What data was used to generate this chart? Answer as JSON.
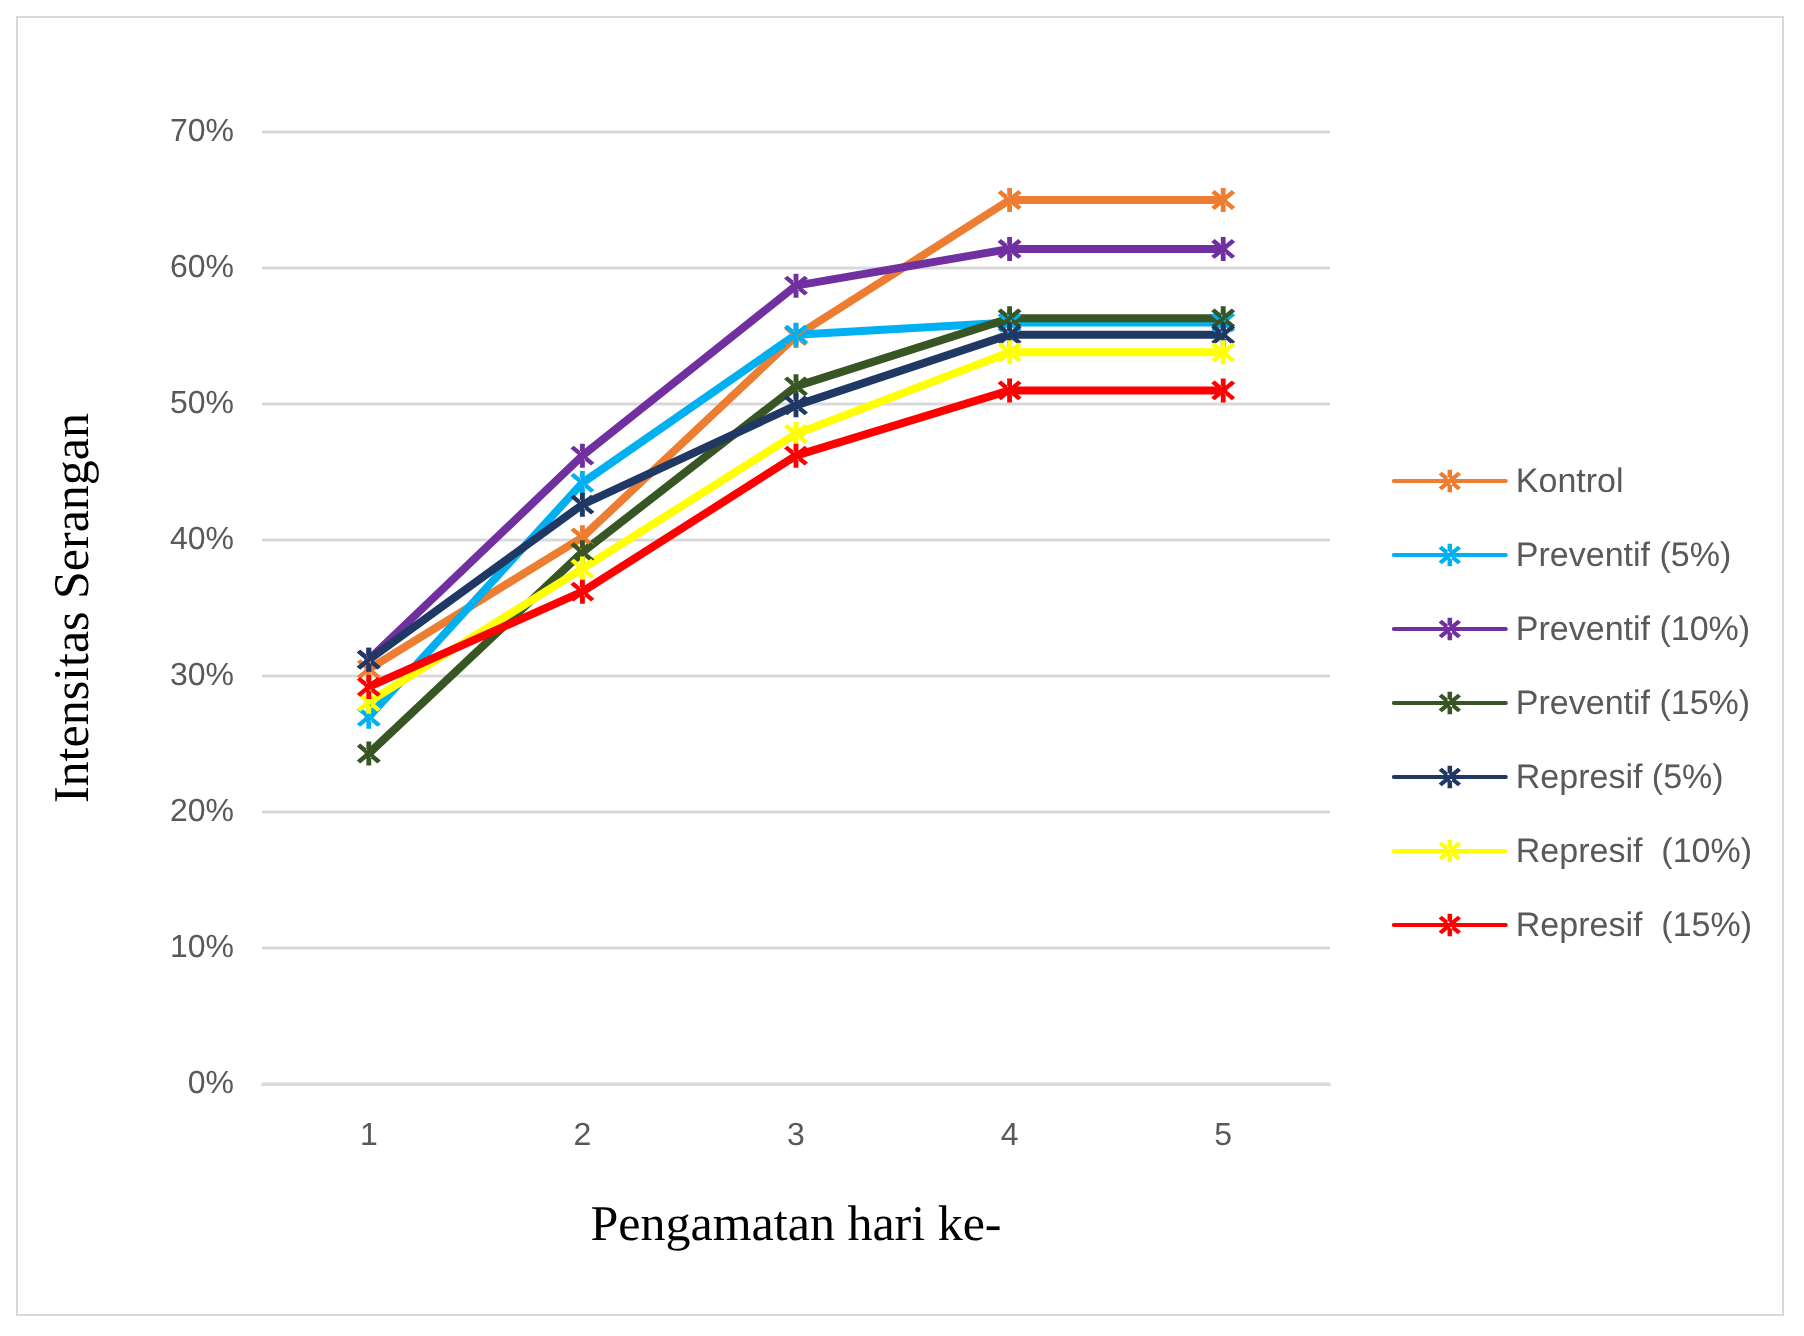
{
  "chart_data": {
    "type": "line",
    "xlabel": "Pengamatan hari ke-",
    "ylabel": "Intensitas Serangan",
    "categories": [
      "1",
      "2",
      "3",
      "4",
      "5"
    ],
    "series": [
      {
        "name": "Kontrol",
        "color": "#ed7d31",
        "values": [
          30.5,
          40.2,
          55,
          65,
          65
        ]
      },
      {
        "name": "Preventif (5%)",
        "color": "#00b0f0",
        "values": [
          27,
          44.2,
          55.1,
          56,
          56
        ]
      },
      {
        "name": "Preventif (10%)",
        "color": "#7030a0",
        "values": [
          31.2,
          46.2,
          58.7,
          61.4,
          61.4
        ]
      },
      {
        "name": "Preventif (15%)",
        "color": "#375623",
        "values": [
          24.3,
          39.1,
          51.3,
          56.3,
          56.3
        ]
      },
      {
        "name": "Represif (5%)",
        "color": "#1f3864",
        "values": [
          31.2,
          42.6,
          49.9,
          55.1,
          55.1
        ]
      },
      {
        "name": "Represif  (10%)",
        "color": "#ffff00",
        "values": [
          28.1,
          37.9,
          47.8,
          53.8,
          53.8
        ]
      },
      {
        "name": "Represif  (15%)",
        "color": "#ff0000",
        "values": [
          29.2,
          36.2,
          46.2,
          51,
          51
        ]
      }
    ],
    "ylim": [
      0,
      70
    ],
    "yticks": [
      {
        "value": 0,
        "label": "0%"
      },
      {
        "value": 10,
        "label": "10%"
      },
      {
        "value": 20,
        "label": "20%"
      },
      {
        "value": 30,
        "label": "30%"
      },
      {
        "value": 40,
        "label": "40%"
      },
      {
        "value": 50,
        "label": "50%"
      },
      {
        "value": 60,
        "label": "60%"
      },
      {
        "value": 70,
        "label": "70%"
      }
    ],
    "grid": "y",
    "legend": "right",
    "marker": "cross",
    "line_style": "solid"
  }
}
